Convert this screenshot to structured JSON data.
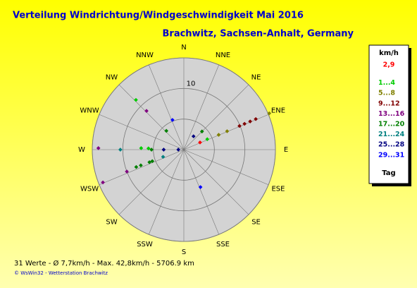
{
  "chart_data": {
    "type": "polar_scatter",
    "title": "Verteilung Windrichtung/Windgeschwindigkeit  Mai 2016",
    "subtitle": "Brachwitz, Sachsen-Anhalt, Germany",
    "directions": [
      "N",
      "NNE",
      "NE",
      "ENE",
      "E",
      "ESE",
      "SE",
      "SSE",
      "S",
      "SSW",
      "SW",
      "WSW",
      "W",
      "WNW",
      "NW",
      "NNW"
    ],
    "rlim": [
      0,
      15
    ],
    "rgrid": [
      5,
      10,
      15
    ],
    "rticks": [
      10
    ],
    "legend_title": "km/h",
    "legend_footer": "Tag",
    "series": [
      {
        "name": "2,9",
        "color": "#ff0000",
        "theta": [
          66
        ],
        "r": [
          2.9
        ]
      },
      {
        "name": "1...4",
        "color": "#00cc00",
        "theta": [
          66,
          316,
          272,
          272
        ],
        "r": [
          4.2,
          11.3,
          7.0,
          5.8
        ]
      },
      {
        "name": "5...8",
        "color": "#808000",
        "theta": [
          67,
          67,
          67
        ],
        "r": [
          15.2,
          6.2,
          7.7
        ]
      },
      {
        "name": "9...12",
        "color": "#800000",
        "theta": [
          67,
          67,
          67,
          67
        ],
        "r": [
          12.8,
          11.8,
          10.8,
          9.9
        ]
      },
      {
        "name": "13...16",
        "color": "#800080",
        "theta": [
          316,
          271,
          248,
          249
        ],
        "r": [
          8.8,
          14.0,
          14.3,
          10.0
        ]
      },
      {
        "name": "17...20",
        "color": "#008000",
        "theta": [
          45,
          317,
          270,
          250,
          250,
          250,
          250
        ],
        "r": [
          4.2,
          4.2,
          5.3,
          8.3,
          7.5,
          6.0,
          5.5
        ]
      },
      {
        "name": "21...24",
        "color": "#008080",
        "theta": [
          270,
          251
        ],
        "r": [
          10.4,
          3.6
        ]
      },
      {
        "name": "25...28",
        "color": "#000080",
        "theta": [
          36,
          270,
          270
        ],
        "r": [
          2.7,
          3.3,
          0.9
        ]
      },
      {
        "name": "29...31",
        "color": "#0000ff",
        "theta": [
          339,
          156
        ],
        "r": [
          5.2,
          6.7
        ]
      }
    ],
    "footer": "31 Werte  -  Ø 7,7km/h  -  Max. 42,8km/h  -  5706.9 km",
    "credit": "© WsWin32  -  Wetterstation Brachwitz"
  }
}
